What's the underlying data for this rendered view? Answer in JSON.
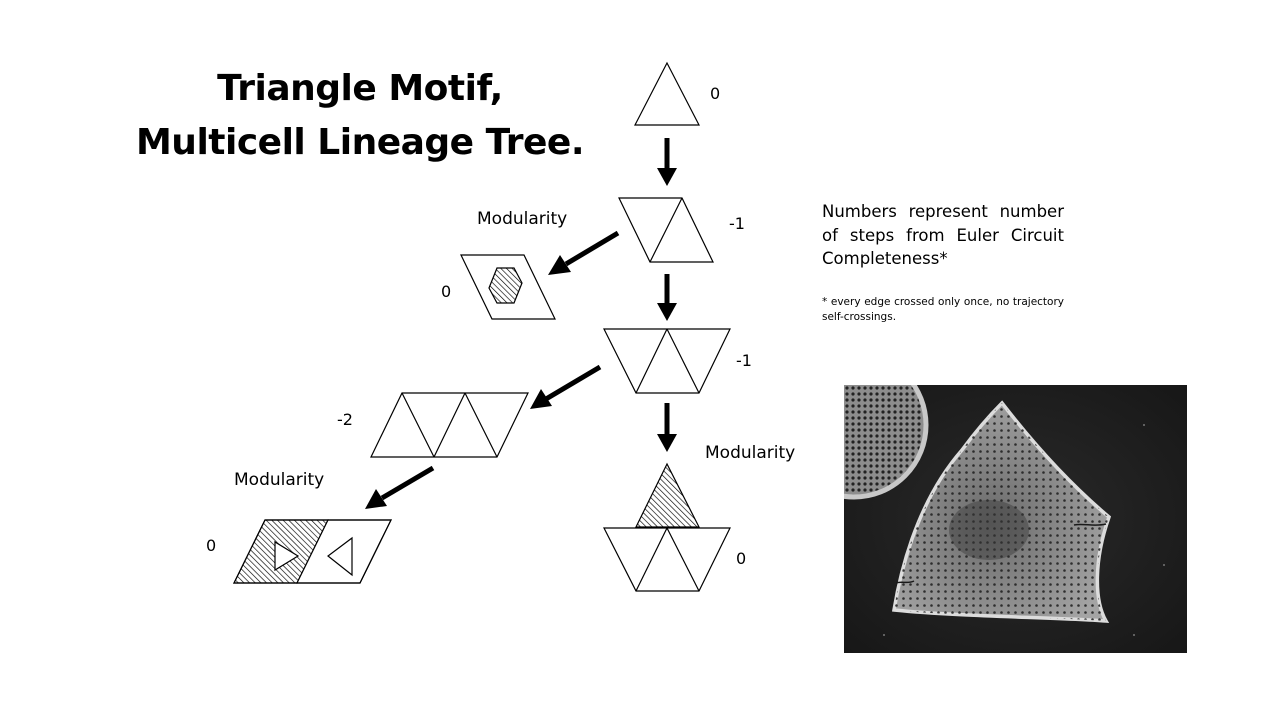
{
  "title": {
    "line1": "Triangle Motif,",
    "line2": "Multicell Lineage Tree."
  },
  "step_labels": {
    "root": "0",
    "level1": "-1",
    "level1_branch": "0",
    "level2": "-1",
    "level3_left": "-2",
    "level4_left": "0",
    "level3_right": "0"
  },
  "modularity_labels": {
    "upper": "Modularity",
    "right": "Modularity",
    "lower_left": "Modularity"
  },
  "note": {
    "text": "Numbers represent number of steps from Euler Circuit Completeness*",
    "footnote": "* every edge crossed only once, no trajectory self-crossings."
  },
  "photo": {
    "subject": "diatom-sem-image"
  }
}
